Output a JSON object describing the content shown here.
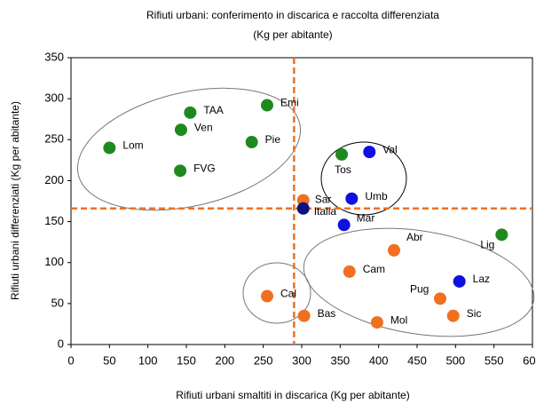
{
  "chart_data": {
    "type": "scatter",
    "title": "Rifiuti urbani: conferimento in discarica e raccolta differenziata",
    "subtitle": "(Kg per abitante)",
    "x_label": "Rifiuti urbani smaltiti in discarica (Kg per abitante)",
    "y_label": "Rifiuti urbani differenziati (Kg per abitante)",
    "xlim": [
      0,
      600
    ],
    "xticks": [
      0,
      50,
      100,
      150,
      200,
      250,
      300,
      350,
      400,
      450,
      500,
      550,
      600
    ],
    "ylim": [
      0,
      350
    ],
    "yticks": [
      0,
      50,
      100,
      150,
      200,
      250,
      300,
      350
    ],
    "reference_lines": {
      "x": 290,
      "y": 166,
      "color": "#f07020"
    },
    "points": [
      {
        "label": "Lom",
        "x": 50,
        "y": 240,
        "color": "#1e8a1e"
      },
      {
        "label": "TAA",
        "x": 155,
        "y": 283,
        "color": "#1e8a1e"
      },
      {
        "label": "Ven",
        "x": 143,
        "y": 262,
        "color": "#1e8a1e"
      },
      {
        "label": "Emi",
        "x": 255,
        "y": 292,
        "color": "#1e8a1e"
      },
      {
        "label": "Pie",
        "x": 235,
        "y": 247,
        "color": "#1e8a1e"
      },
      {
        "label": "FVG",
        "x": 142,
        "y": 212,
        "color": "#1e8a1e"
      },
      {
        "label": "Tos",
        "x": 352,
        "y": 232,
        "color": "#1e8a1e"
      },
      {
        "label": "Val",
        "x": 388,
        "y": 235,
        "color": "#1010e0"
      },
      {
        "label": "Sar",
        "x": 302,
        "y": 176,
        "color": "#f07020"
      },
      {
        "label": "Italia",
        "x": 302,
        "y": 166,
        "color": "#101080"
      },
      {
        "label": "Umb",
        "x": 365,
        "y": 178,
        "color": "#1010e0"
      },
      {
        "label": "Mar",
        "x": 355,
        "y": 146,
        "color": "#1010e0"
      },
      {
        "label": "Abr",
        "x": 420,
        "y": 115,
        "color": "#f07020"
      },
      {
        "label": "Lig",
        "x": 560,
        "y": 134,
        "color": "#1e8a1e"
      },
      {
        "label": "Cam",
        "x": 362,
        "y": 89,
        "color": "#f07020"
      },
      {
        "label": "Laz",
        "x": 505,
        "y": 77,
        "color": "#1010e0"
      },
      {
        "label": "Pug",
        "x": 480,
        "y": 56,
        "color": "#f07020"
      },
      {
        "label": "Cal",
        "x": 255,
        "y": 59,
        "color": "#f07020"
      },
      {
        "label": "Sic",
        "x": 497,
        "y": 35,
        "color": "#f07020"
      },
      {
        "label": "Bas",
        "x": 303,
        "y": 35,
        "color": "#f07020"
      },
      {
        "label": "Mol",
        "x": 398,
        "y": 27,
        "color": "#f07020"
      }
    ]
  }
}
